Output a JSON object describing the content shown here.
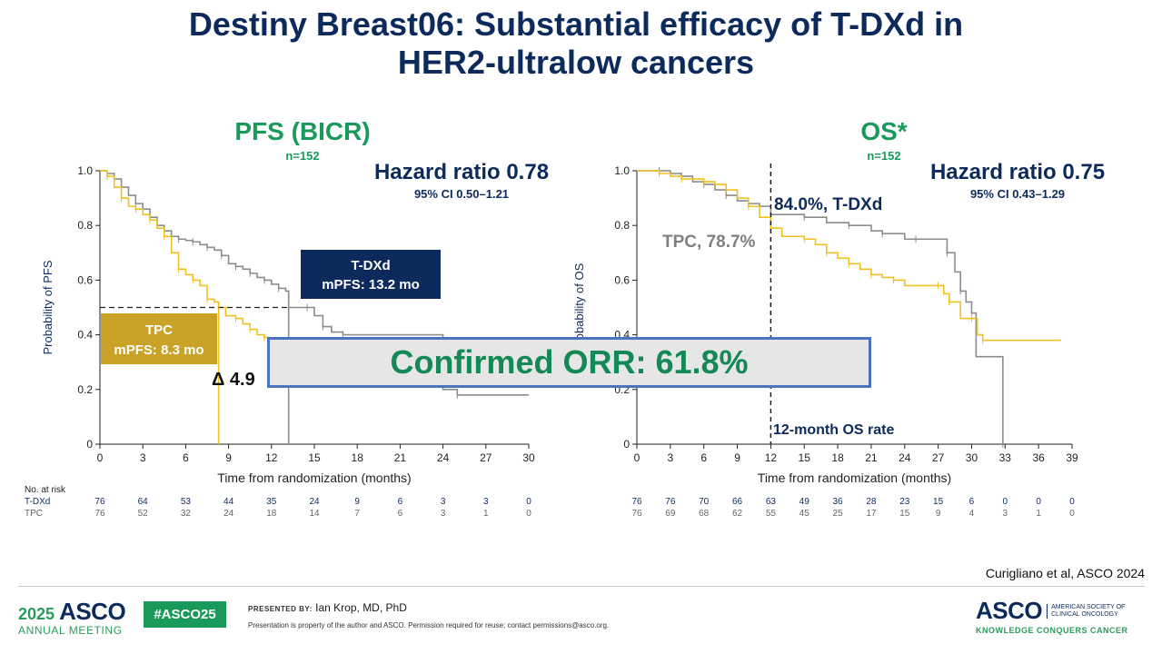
{
  "slide": {
    "title_line1": "Destiny Breast06: Substantial efficacy of T-DXd in",
    "title_line2": "HER2-ultralow cancers",
    "orr_text": "Confirmed ORR: 61.8%",
    "citation": "Curigliano et al, ASCO 2024"
  },
  "colors": {
    "title": "#0d2a5c",
    "green": "#1a9a5a",
    "tdxd": "#8c8c8c",
    "tpc": "#f2c01d",
    "tdxd_box": "#0d2a5c",
    "tpc_box": "#c9a227",
    "orr_border": "#4a74c0"
  },
  "footer": {
    "meeting_year": "2025",
    "meeting_name": "ASCO",
    "meeting_sub": "ANNUAL MEETING",
    "hashtag": "#ASCO25",
    "presented_by_label": "PRESENTED BY:",
    "presenter": "Ian Krop, MD, PhD",
    "permission": "Presentation is property of the author and ASCO. Permission required for reuse; contact permissions@asco.org.",
    "logo_text": "ASCO",
    "logo_society": [
      "AMERICAN SOCIETY OF",
      "CLINICAL ONCOLOGY"
    ],
    "logo_tagline": "KNOWLEDGE CONQUERS CANCER"
  },
  "chart_data": [
    {
      "type": "line",
      "name": "pfs",
      "title": "PFS (BICR)",
      "subtitle": "n=152",
      "hr_text": "Hazard ratio 0.78",
      "ci_text": "95% CI 0.50–1.21",
      "xlabel": "Time from randomization (months)",
      "ylabel": "Probability of PFS",
      "xlim": [
        0,
        30
      ],
      "ylim": [
        0,
        1
      ],
      "xticks": [
        0,
        3,
        6,
        9,
        12,
        15,
        18,
        21,
        24,
        27,
        30
      ],
      "yticks": [
        0,
        0.2,
        0.4,
        0.6,
        0.8,
        1.0
      ],
      "ytick_labels": [
        "0",
        "0.2",
        "0.4",
        "0.6",
        "0.8",
        "1.0"
      ],
      "median_line_y": 0.5,
      "series": [
        {
          "name": "T-DXd",
          "color": "#8c8c8c",
          "x": [
            0,
            0.5,
            1,
            1.5,
            2,
            2.5,
            3,
            3.5,
            4,
            4.5,
            5,
            5.5,
            6,
            6.5,
            7,
            7.5,
            8,
            8.5,
            9,
            9.5,
            10,
            10.5,
            11,
            11.5,
            12,
            12.5,
            13,
            13.2,
            13.8,
            14.5,
            15,
            15.6,
            16.2,
            17,
            24,
            25,
            30
          ],
          "y": [
            1.0,
            0.99,
            0.97,
            0.94,
            0.91,
            0.88,
            0.86,
            0.83,
            0.8,
            0.78,
            0.76,
            0.75,
            0.745,
            0.74,
            0.73,
            0.72,
            0.71,
            0.69,
            0.66,
            0.65,
            0.64,
            0.625,
            0.61,
            0.6,
            0.585,
            0.57,
            0.56,
            0.5,
            0.5,
            0.5,
            0.47,
            0.43,
            0.41,
            0.4,
            0.2,
            0.18,
            0.18
          ]
        },
        {
          "name": "TPC",
          "color": "#f2c01d",
          "x": [
            0,
            0.5,
            1,
            1.5,
            2,
            2.5,
            3,
            3.5,
            4,
            4.5,
            5,
            5.5,
            6,
            6.5,
            7,
            7.5,
            8,
            8.3,
            8.8,
            9.5,
            10,
            10.5,
            11,
            11.5,
            12
          ],
          "y": [
            1.0,
            0.98,
            0.94,
            0.9,
            0.87,
            0.86,
            0.84,
            0.82,
            0.79,
            0.76,
            0.7,
            0.64,
            0.62,
            0.6,
            0.58,
            0.53,
            0.52,
            0.5,
            0.47,
            0.46,
            0.44,
            0.42,
            0.4,
            0.39,
            0.38
          ]
        }
      ],
      "annotations": {
        "tdxd_box_line1": "T-DXd",
        "tdxd_box_line2": "mPFS: 13.2 mo",
        "tpc_box_line1": "TPC",
        "tpc_box_line2": "mPFS: 8.3 mo",
        "delta": "Δ 4.9"
      },
      "at_risk": {
        "header": "No. at risk",
        "rows": [
          {
            "label": "T-DXd",
            "values": [
              "76",
              "64",
              "53",
              "44",
              "35",
              "24",
              "9",
              "6",
              "3",
              "3",
              "0"
            ]
          },
          {
            "label": "TPC",
            "values": [
              "76",
              "52",
              "32",
              "24",
              "18",
              "14",
              "7",
              "6",
              "3",
              "1",
              "0"
            ]
          }
        ]
      }
    },
    {
      "type": "line",
      "name": "os",
      "title": "OS*",
      "subtitle": "n=152",
      "hr_text": "Hazard ratio 0.75",
      "ci_text": "95% CI 0.43–1.29",
      "xlabel": "Time from randomization (months)",
      "ylabel": "Probability of OS",
      "xlim": [
        0,
        39
      ],
      "ylim": [
        0,
        1
      ],
      "xticks": [
        0,
        3,
        6,
        9,
        12,
        15,
        18,
        21,
        24,
        27,
        30,
        33,
        36,
        39
      ],
      "yticks": [
        0,
        0.2,
        0.4,
        0.6,
        0.8,
        1.0
      ],
      "ytick_labels": [
        "0",
        "0.2",
        "0.4",
        "0.6",
        "0.8",
        "1.0"
      ],
      "marker_line_x": 12,
      "series": [
        {
          "name": "T-DXd",
          "color": "#8c8c8c",
          "x": [
            0,
            2,
            3,
            4,
            5,
            6,
            7,
            8,
            9,
            10,
            11,
            12,
            14,
            15,
            17,
            19,
            21,
            22,
            24,
            25,
            27,
            27.8,
            28.5,
            29,
            29.5,
            30,
            30.4,
            32.8
          ],
          "y": [
            1.0,
            1.0,
            0.99,
            0.98,
            0.96,
            0.95,
            0.93,
            0.91,
            0.89,
            0.88,
            0.87,
            0.84,
            0.84,
            0.83,
            0.81,
            0.8,
            0.78,
            0.77,
            0.75,
            0.75,
            0.75,
            0.7,
            0.63,
            0.56,
            0.52,
            0.48,
            0.32,
            0.0
          ]
        },
        {
          "name": "TPC",
          "color": "#f2c01d",
          "x": [
            0,
            2,
            3,
            4,
            5,
            6,
            7,
            8,
            9,
            10,
            11,
            12,
            13,
            15,
            16,
            17,
            18,
            19,
            20,
            21,
            22,
            23,
            24,
            27,
            27.5,
            28,
            29,
            30,
            30.5,
            31,
            38
          ],
          "y": [
            1.0,
            0.99,
            0.98,
            0.97,
            0.97,
            0.96,
            0.95,
            0.93,
            0.9,
            0.87,
            0.83,
            0.79,
            0.76,
            0.75,
            0.73,
            0.7,
            0.68,
            0.66,
            0.64,
            0.62,
            0.61,
            0.6,
            0.58,
            0.58,
            0.55,
            0.52,
            0.46,
            0.46,
            0.4,
            0.38,
            0.38
          ]
        }
      ],
      "annotations": {
        "tdxd_rate": "84.0%, T-DXd",
        "tpc_rate": "TPC, 78.7%",
        "rate_label": "12-month OS rate"
      },
      "at_risk": {
        "header": "",
        "rows": [
          {
            "label": "T-DXd",
            "values": [
              "76",
              "76",
              "70",
              "66",
              "63",
              "49",
              "36",
              "28",
              "23",
              "15",
              "6",
              "0",
              "0",
              "0"
            ]
          },
          {
            "label": "TPC",
            "values": [
              "76",
              "69",
              "68",
              "62",
              "55",
              "45",
              "25",
              "17",
              "15",
              "9",
              "4",
              "3",
              "1",
              "0"
            ]
          }
        ]
      }
    }
  ]
}
